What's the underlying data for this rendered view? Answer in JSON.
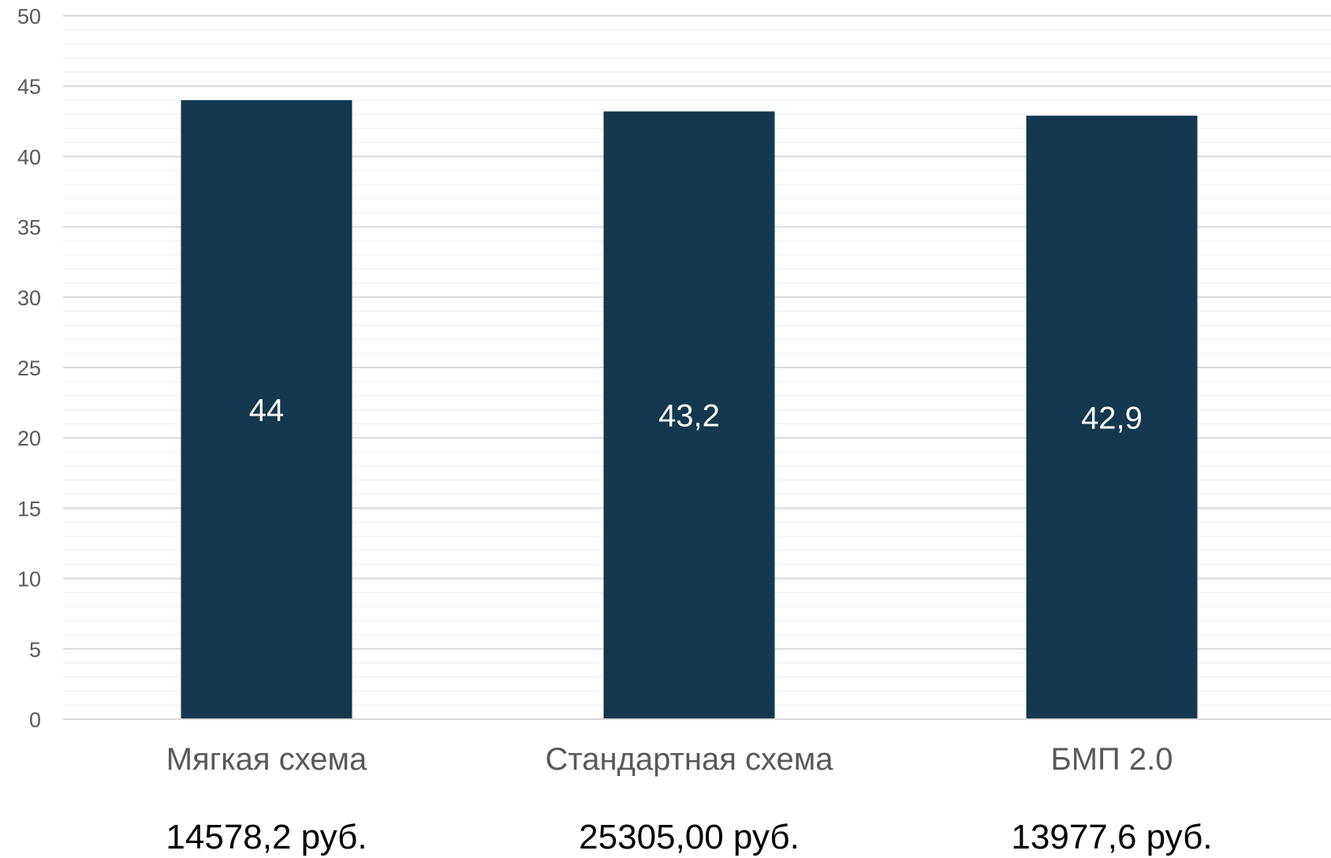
{
  "chart_data": {
    "type": "bar",
    "categories": [
      "Мягкая схема",
      "Стандартная схема",
      "БМП 2.0"
    ],
    "values": [
      44,
      43.2,
      42.9
    ],
    "data_labels": [
      "44",
      "43,2",
      "42,9"
    ],
    "category_prices": [
      "14578,2 руб.",
      "25305,00 руб.",
      "13977,6 руб."
    ],
    "yticks": [
      0,
      5,
      10,
      15,
      20,
      25,
      30,
      35,
      40,
      45,
      50
    ],
    "ylim": [
      0,
      50
    ],
    "minor_grid_step": 1,
    "grid": true,
    "legend": "none",
    "colors": {
      "bar": "#13384F",
      "major_grid": "#D9D9D9",
      "minor_grid": "#F0F0F0",
      "axis": "#D9D9D9",
      "tick_text": "#595959",
      "category_text": "#595959",
      "price_text": "#000000",
      "data_label_text": "#FFFFFF"
    }
  }
}
